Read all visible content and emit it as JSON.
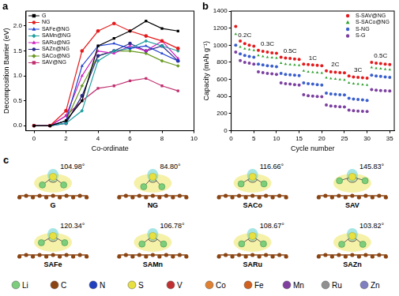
{
  "chart_data": [
    {
      "type": "line",
      "title": "a",
      "x_label": "Co-ordinate",
      "y_label": "Decomposition Barrier (eV)",
      "x": [
        0,
        1,
        2,
        3,
        4,
        5,
        6,
        7,
        8,
        9
      ],
      "series": [
        {
          "name": "G",
          "color": "#000000",
          "marker": "square",
          "values": [
            0,
            0,
            0.1,
            0.5,
            1.6,
            1.75,
            1.9,
            2.1,
            1.95,
            1.9
          ]
        },
        {
          "name": "NG",
          "color": "#e41a1c",
          "marker": "circle",
          "values": [
            0,
            0,
            0.3,
            1.5,
            1.9,
            2.05,
            1.9,
            1.8,
            1.7,
            1.55
          ]
        },
        {
          "name": "SAFe@NG",
          "color": "#1f3fd0",
          "marker": "triangle",
          "values": [
            0,
            0,
            0.1,
            1.2,
            1.6,
            1.65,
            1.55,
            1.6,
            1.45,
            1.3
          ]
        },
        {
          "name": "SAMn@NG",
          "color": "#20a0a0",
          "marker": "diamond",
          "values": [
            0,
            0,
            0.05,
            0.3,
            1.3,
            1.5,
            1.55,
            1.7,
            1.6,
            1.5
          ]
        },
        {
          "name": "SARu@NG",
          "color": "#d020c0",
          "marker": "triangle",
          "values": [
            0,
            0,
            0.2,
            1.0,
            1.5,
            1.45,
            1.6,
            1.5,
            1.7,
            1.35
          ]
        },
        {
          "name": "SAZn@NG",
          "color": "#2a2a8a",
          "marker": "circle",
          "values": [
            0,
            0,
            0.05,
            0.6,
            1.4,
            1.5,
            1.65,
            1.5,
            1.6,
            1.3
          ]
        },
        {
          "name": "SACo@NG",
          "color": "#6a9a20",
          "marker": "diamond",
          "values": [
            0,
            0,
            0.1,
            0.8,
            1.4,
            1.5,
            1.5,
            1.45,
            1.3,
            1.2
          ]
        },
        {
          "name": "SAV@NG",
          "color": "#c03070",
          "marker": "square",
          "values": [
            0,
            0,
            0.2,
            0.5,
            0.75,
            0.8,
            0.9,
            0.95,
            0.8,
            0.7
          ]
        }
      ],
      "xlim": [
        -0.5,
        10
      ],
      "xticks": [
        0,
        2,
        4,
        6,
        8,
        10
      ],
      "ylim": [
        -0.1,
        2.3
      ],
      "yticks": [
        {
          "value": 0,
          "label": "0.0"
        },
        {
          "value": 0.5,
          "label": "0.5"
        },
        {
          "value": 1,
          "label": "1.0"
        },
        {
          "value": 1.5,
          "label": "1.5"
        },
        {
          "value": 2,
          "label": "2.0"
        }
      ],
      "grid": false,
      "legend": "upper left"
    },
    {
      "type": "scatter",
      "title": "b",
      "x_label": "Cycle number",
      "y_label": "Capacity (mAh g⁻¹)",
      "x": [
        1,
        2,
        3,
        4,
        5,
        6,
        7,
        8,
        9,
        10,
        11,
        12,
        13,
        14,
        15,
        16,
        17,
        18,
        19,
        20,
        21,
        22,
        23,
        24,
        25,
        26,
        27,
        28,
        29,
        30,
        31,
        32,
        33,
        34,
        35
      ],
      "series": [
        {
          "name": "S-SAV@NG",
          "color": "#e41a1c",
          "marker": "circle",
          "values": [
            1220,
            1050,
            1020,
            1000,
            990,
            940,
            930,
            920,
            910,
            905,
            860,
            850,
            845,
            840,
            835,
            780,
            775,
            770,
            765,
            760,
            700,
            690,
            685,
            680,
            678,
            640,
            630,
            625,
            620,
            615,
            800,
            790,
            785,
            780,
            775
          ]
        },
        {
          "name": "S-SACo@NG",
          "color": "#2ca02c",
          "marker": "triangle",
          "values": [
            1130,
            980,
            960,
            950,
            940,
            880,
            870,
            860,
            855,
            850,
            790,
            780,
            775,
            770,
            765,
            700,
            690,
            685,
            680,
            675,
            620,
            610,
            605,
            600,
            595,
            560,
            550,
            545,
            540,
            535,
            740,
            730,
            725,
            720,
            715
          ]
        },
        {
          "name": "S-NG",
          "color": "#3a5fcd",
          "marker": "circle",
          "values": [
            1000,
            900,
            880,
            870,
            860,
            780,
            770,
            760,
            755,
            750,
            670,
            660,
            655,
            650,
            645,
            560,
            550,
            545,
            540,
            535,
            440,
            430,
            425,
            420,
            418,
            380,
            370,
            365,
            360,
            355,
            650,
            640,
            635,
            630,
            625
          ]
        },
        {
          "name": "S-G",
          "color": "#7b3fa0",
          "marker": "circle",
          "values": [
            920,
            820,
            800,
            790,
            780,
            690,
            680,
            670,
            665,
            660,
            560,
            550,
            545,
            540,
            535,
            420,
            410,
            405,
            400,
            398,
            300,
            290,
            285,
            280,
            278,
            240,
            235,
            230,
            228,
            225,
            480,
            475,
            470,
            468,
            465
          ]
        }
      ],
      "xlim": [
        0,
        36
      ],
      "xticks": [
        0,
        5,
        10,
        15,
        20,
        25,
        30,
        35
      ],
      "ylim": [
        0,
        1400
      ],
      "yticks": [
        0,
        200,
        400,
        600,
        800,
        1000,
        1200,
        1400
      ],
      "annotations": [
        {
          "text": "0.2C",
          "x": 3,
          "y": 1120
        },
        {
          "text": "0.3C",
          "x": 8,
          "y": 1010
        },
        {
          "text": "0.5C",
          "x": 13,
          "y": 930
        },
        {
          "text": "1C",
          "x": 18,
          "y": 850
        },
        {
          "text": "2C",
          "x": 23,
          "y": 770
        },
        {
          "text": "3C",
          "x": 28,
          "y": 710
        },
        {
          "text": "0.5C",
          "x": 33,
          "y": 880
        }
      ],
      "grid": false,
      "legend": "upper right"
    }
  ],
  "panel_c": {
    "label": "c",
    "rows": [
      [
        {
          "name": "G",
          "angle": {
            "value": 104.98,
            "label": "104.98°"
          }
        },
        {
          "name": "NG",
          "angle": {
            "value": 84.8,
            "label": "84.80°"
          }
        },
        {
          "name": "SACo",
          "angle": {
            "value": 116.66,
            "label": "116.66°"
          }
        },
        {
          "name": "SAV",
          "angle": {
            "value": 145.83,
            "label": "145.83°"
          }
        }
      ],
      [
        {
          "name": "SAFe",
          "angle": {
            "value": 120.34,
            "label": "120.34°"
          }
        },
        {
          "name": "SAMn",
          "angle": {
            "value": 106.78,
            "label": "106.78°"
          }
        },
        {
          "name": "SARu",
          "angle": {
            "value": 108.67,
            "label": "108.67°"
          }
        },
        {
          "name": "SAZn",
          "angle": {
            "value": 103.82,
            "label": "103.82°"
          }
        }
      ]
    ],
    "elements": [
      {
        "symbol": "Li",
        "color": "#7ccd7c"
      },
      {
        "symbol": "C",
        "color": "#8b4513"
      },
      {
        "symbol": "N",
        "color": "#2040c0"
      },
      {
        "symbol": "S",
        "color": "#e8e040"
      },
      {
        "symbol": "V",
        "color": "#c03030"
      },
      {
        "symbol": "Co",
        "color": "#e08030"
      },
      {
        "symbol": "Fe",
        "color": "#d06020"
      },
      {
        "symbol": "Mn",
        "color": "#8040a0"
      },
      {
        "symbol": "Ru",
        "color": "#909090"
      },
      {
        "symbol": "Zn",
        "color": "#8080c0"
      }
    ]
  }
}
